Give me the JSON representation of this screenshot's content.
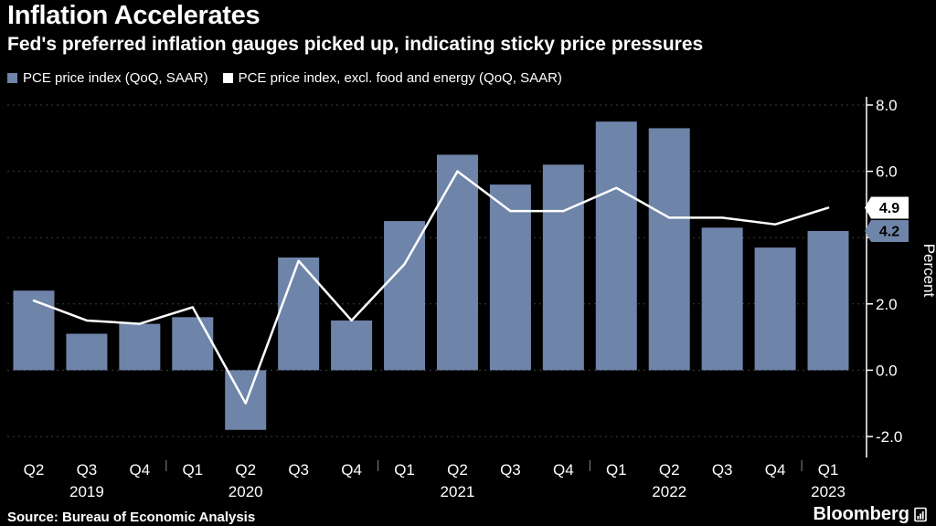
{
  "header": {
    "title": "Inflation Accelerates",
    "subtitle": "Fed's preferred inflation gauges picked up, indicating sticky price pressures"
  },
  "legend": {
    "items": [
      {
        "label": "PCE price index (QoQ, SAAR)",
        "color": "#6e84a9"
      },
      {
        "label": "PCE price index, excl. food and energy (QoQ, SAAR)",
        "color": "#ffffff"
      }
    ]
  },
  "colors": {
    "background": "#000000",
    "text": "#ffffff",
    "grid": "#3f3f3f",
    "bar": "#6e84a9",
    "line": "#ffffff",
    "axis": "#ffffff"
  },
  "chart_data": {
    "type": "bar+line",
    "categories": [
      "Q2 2019",
      "Q3 2019",
      "Q4 2019",
      "Q1 2020",
      "Q2 2020",
      "Q3 2020",
      "Q4 2020",
      "Q1 2021",
      "Q2 2021",
      "Q3 2021",
      "Q4 2021",
      "Q1 2022",
      "Q2 2022",
      "Q3 2022",
      "Q4 2022",
      "Q1 2023"
    ],
    "x_tick_labels": [
      "Q2",
      "Q3",
      "Q4",
      "Q1",
      "Q2",
      "Q3",
      "Q4",
      "Q1",
      "Q2",
      "Q3",
      "Q4",
      "Q1",
      "Q2",
      "Q3",
      "Q4",
      "Q1"
    ],
    "year_labels": [
      {
        "text": "2019",
        "index": 1
      },
      {
        "text": "2020",
        "index": 4
      },
      {
        "text": "2021",
        "index": 8
      },
      {
        "text": "2022",
        "index": 12
      },
      {
        "text": "2023",
        "index": 15
      }
    ],
    "series": [
      {
        "name": "PCE price index (QoQ, SAAR)",
        "type": "bar",
        "color": "#6e84a9",
        "values": [
          2.4,
          1.1,
          1.4,
          1.6,
          -1.8,
          3.4,
          1.5,
          4.5,
          6.5,
          5.6,
          6.2,
          7.5,
          7.3,
          4.3,
          3.7,
          4.2
        ]
      },
      {
        "name": "PCE price index, excl. food and energy (QoQ, SAAR)",
        "type": "line",
        "color": "#ffffff",
        "values": [
          2.1,
          1.5,
          1.4,
          1.9,
          -1.0,
          3.3,
          1.5,
          3.2,
          6.0,
          4.8,
          4.8,
          5.5,
          4.6,
          4.6,
          4.4,
          4.9
        ]
      }
    ],
    "ylabel": "Percent",
    "ylim": [
      -2.6,
      8.5
    ],
    "ytick_labels": [
      "8.0",
      "6.0",
      "4.0",
      "2.0",
      "0.0",
      "-2.0"
    ],
    "grid": "dotted-horizontal",
    "legend_position": "top-left",
    "end_labels": [
      {
        "value": "4.9",
        "series": "PCE price index, excl. food and energy (QoQ, SAAR)",
        "bg": "#ffffff",
        "fg": "#000000"
      },
      {
        "value": "4.2",
        "series": "PCE price index (QoQ, SAAR)",
        "bg": "#6e84a9",
        "fg": "#000000"
      }
    ]
  },
  "footer": {
    "source": "Source: Bureau of Economic Analysis",
    "brand": "Bloomberg"
  }
}
